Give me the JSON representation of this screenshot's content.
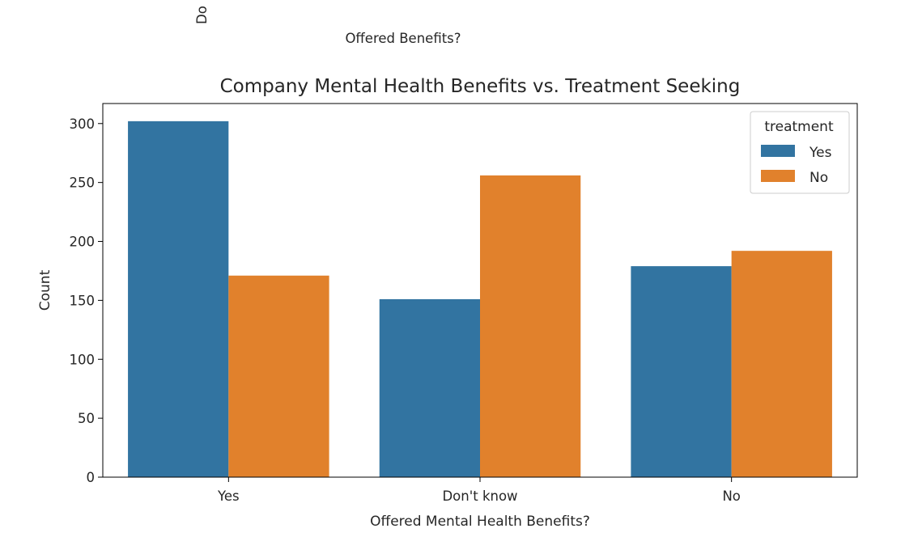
{
  "overlay": {
    "rotated_fragment": "Do",
    "fragment_label": "Offered Benefits?"
  },
  "chart_data": {
    "type": "bar",
    "title": "Company Mental Health Benefits vs. Treatment Seeking",
    "xlabel": "Offered Mental Health Benefits?",
    "ylabel": "Count",
    "categories": [
      "Yes",
      "Don't know",
      "No"
    ],
    "series": [
      {
        "name": "Yes",
        "values": [
          302,
          151,
          179
        ],
        "color": "#3274a1"
      },
      {
        "name": "No",
        "values": [
          171,
          256,
          192
        ],
        "color": "#e1812c"
      }
    ],
    "ylim": [
      0,
      317
    ],
    "yticks": [
      0,
      50,
      100,
      150,
      200,
      250,
      300
    ],
    "legend": {
      "title": "treatment",
      "placement": "top-right"
    },
    "grid": false
  }
}
